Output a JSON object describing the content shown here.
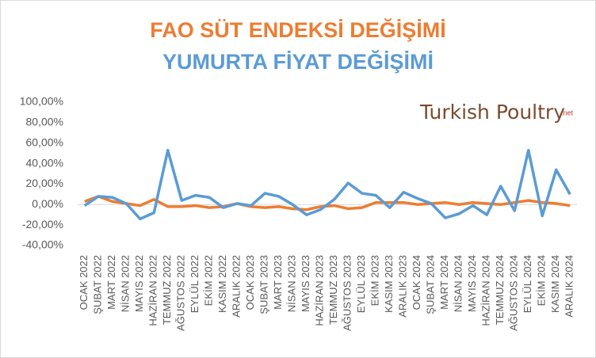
{
  "chart_data": {
    "type": "line",
    "logo": "Turkish Poultry",
    "logo_suffix": ".net",
    "categories": [
      "OCAK 2022",
      "ŞUBAT 2022",
      "MART 2022",
      "NİSAN 2022",
      "MAYIS 2022",
      "HAZİRAN 2022",
      "TEMMUZ 2022",
      "AĞUSTOS 2022",
      "EYLÜL 2022",
      "EKİM 2022",
      "KASIM 2022",
      "ARALIK 2022",
      "OCAK 2023",
      "ŞUBAT 2023",
      "MART 2023",
      "NİSAN 2023",
      "MAYIS 2023",
      "HAZİRAN 2023",
      "TEMMUZ 2023",
      "AĞUSTOS 2023",
      "EYLÜL 2023",
      "EKİM 2023",
      "KASIM 2023",
      "ARALIK 2023",
      "OCAK 2024",
      "ŞUBAT 2024",
      "MART 2024",
      "NİSAN 2024",
      "MAYIS 2024",
      "HAZİRAN 2024",
      "TEMMUZ 2024",
      "AĞUSTOS 2024",
      "EYLÜL 2024",
      "EKİM 2024",
      "KASIM 2024",
      "ARALIK 2024"
    ],
    "series": [
      {
        "name": "FAO SÜT ENDEKSİ DEĞİŞİMİ",
        "color": "#ed7d31",
        "values": [
          3,
          8,
          3,
          1,
          -1,
          5,
          -2,
          -2,
          -1,
          -3,
          -2,
          1,
          -2,
          -3,
          -2,
          -4,
          -5,
          -2,
          -1,
          -4,
          -3,
          2,
          2,
          2,
          0,
          1,
          2,
          0,
          2,
          1,
          0,
          2,
          4,
          2,
          1,
          -1
        ]
      },
      {
        "name": "YUMURTA FİYAT DEĞİŞİMİ",
        "color": "#5b9bd5",
        "values": [
          -1,
          8,
          7,
          1,
          -14,
          -8,
          53,
          4,
          9,
          7,
          -3,
          1,
          -1,
          11,
          8,
          0,
          -10,
          -5,
          5,
          21,
          11,
          9,
          -3,
          12,
          6,
          1,
          -13,
          -9,
          -1,
          -10,
          18,
          -6,
          53,
          -11,
          34,
          10
        ]
      }
    ],
    "ylim": [
      -40,
      100
    ],
    "yticks": [
      {
        "value": -40,
        "label": "-40,00%"
      },
      {
        "value": -20,
        "label": "-20,00%"
      },
      {
        "value": 0,
        "label": "0,00%"
      },
      {
        "value": 20,
        "label": "20,00%"
      },
      {
        "value": 40,
        "label": "40,00%"
      },
      {
        "value": 60,
        "label": "60,00%"
      },
      {
        "value": 80,
        "label": "80,00%"
      },
      {
        "value": 100,
        "label": "100,00%"
      }
    ],
    "grid": false
  }
}
